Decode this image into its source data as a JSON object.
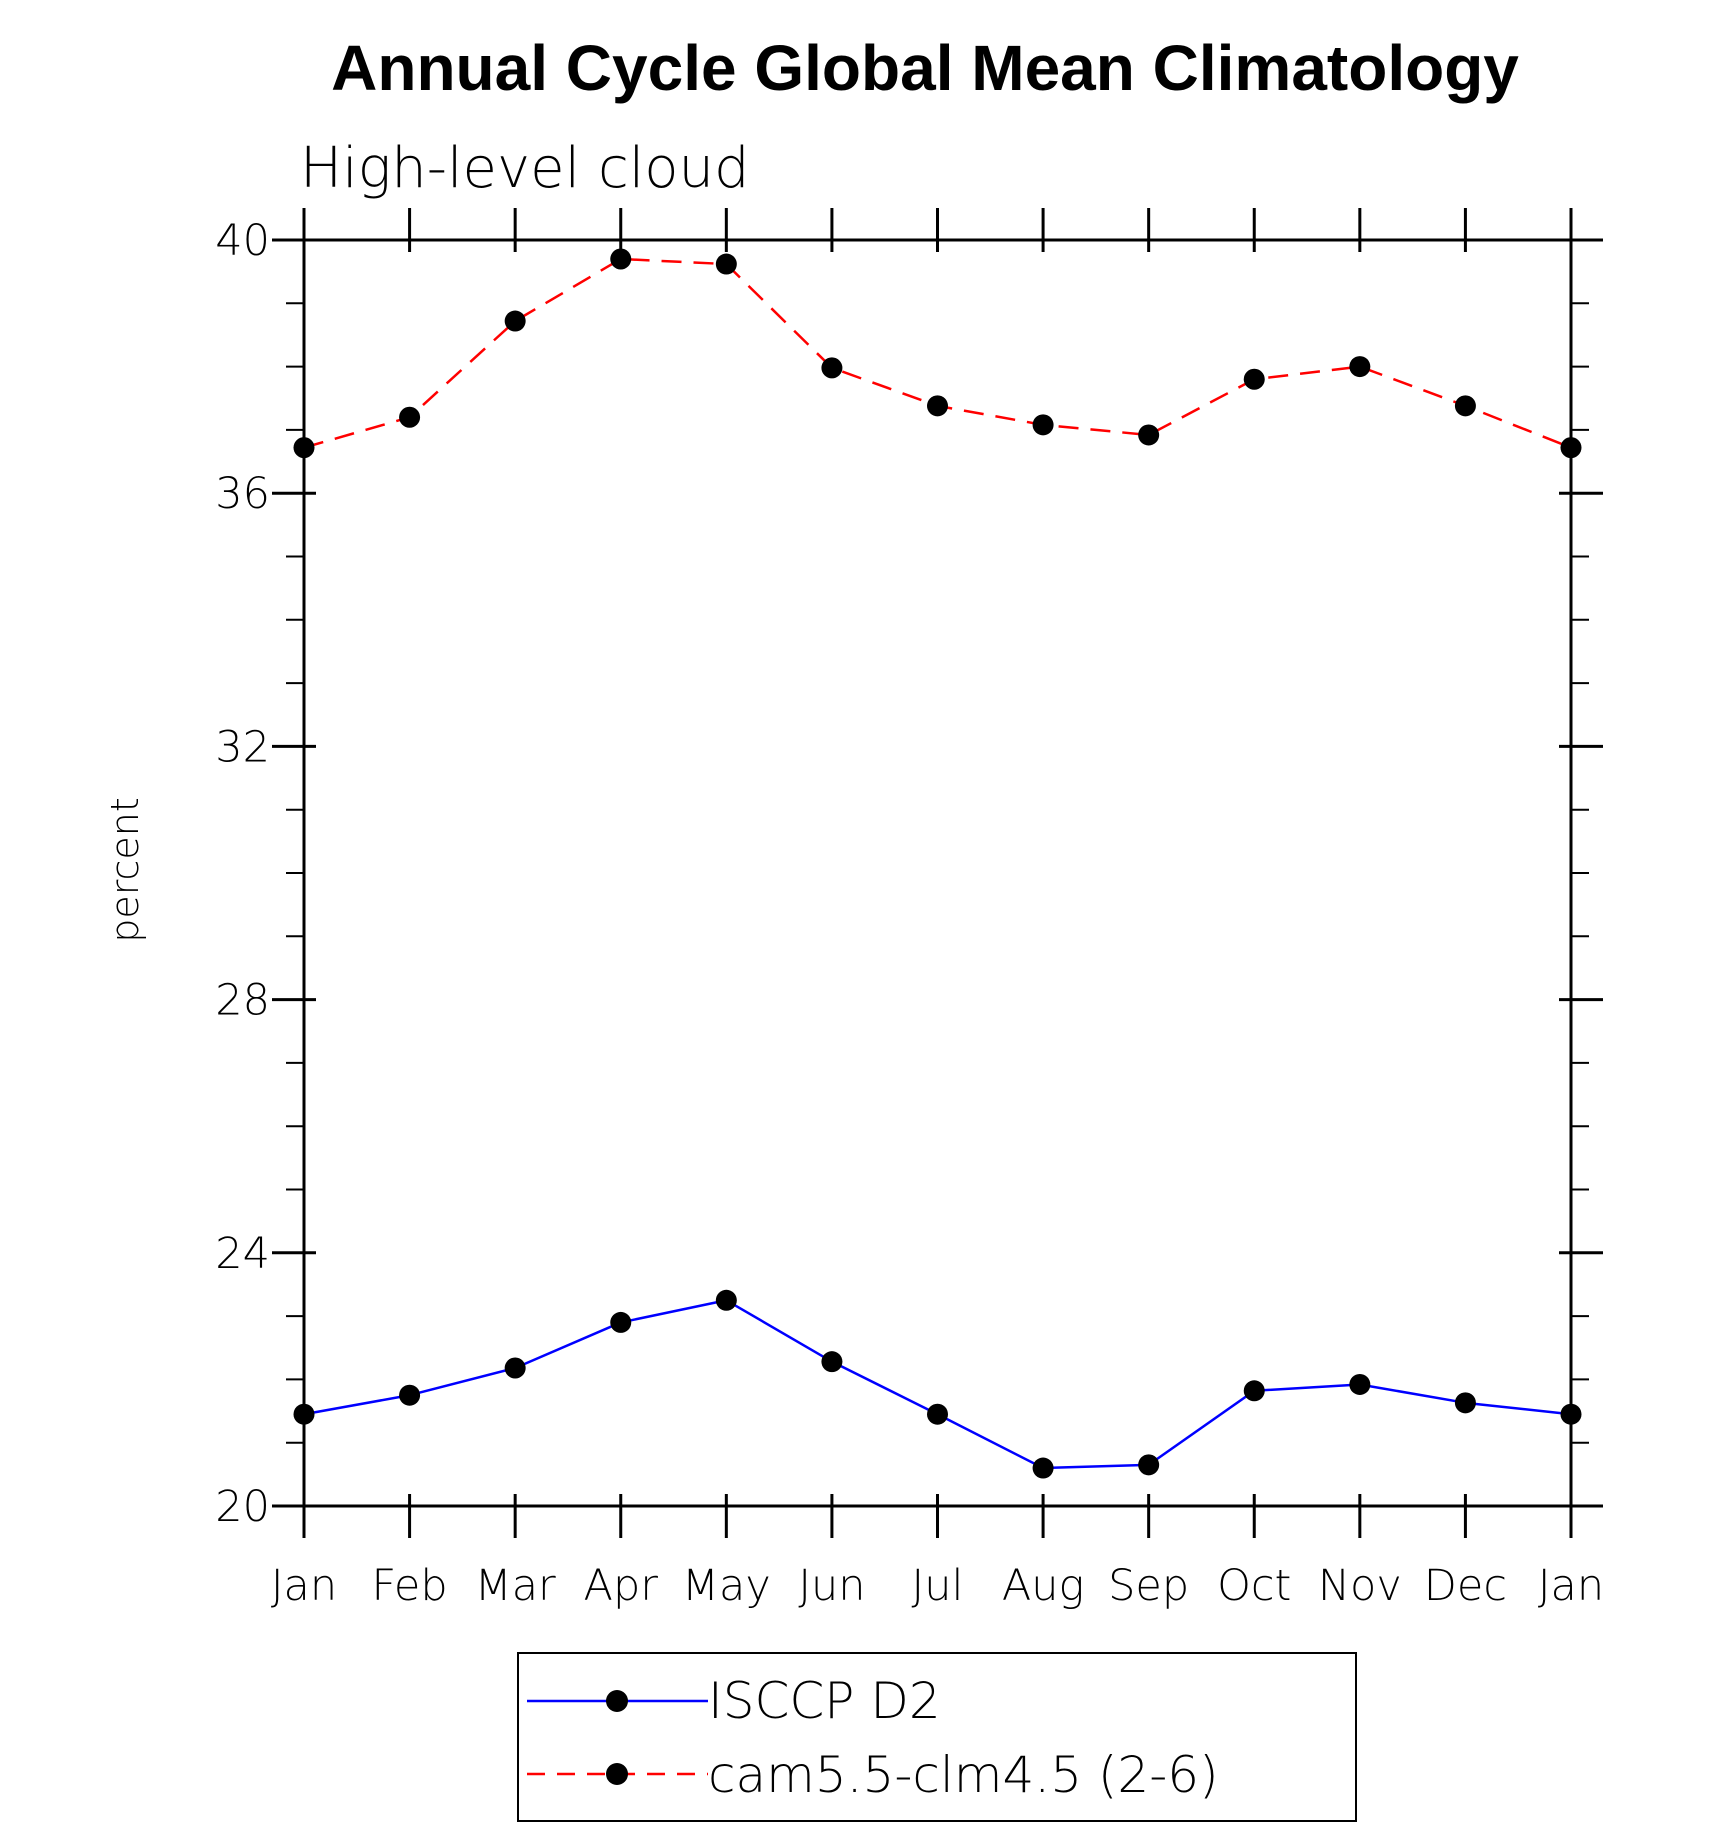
{
  "chart_data": {
    "type": "line",
    "title": "Annual Cycle Global Mean Climatology",
    "subtitle": "High-level cloud",
    "xlabel": "",
    "ylabel": "percent",
    "ylim": [
      20,
      40
    ],
    "yticks": [
      "20",
      "24",
      "28",
      "32",
      "36",
      "40"
    ],
    "categories": [
      "Jan",
      "Feb",
      "Mar",
      "Apr",
      "May",
      "Jun",
      "Jul",
      "Aug",
      "Sep",
      "Oct",
      "Nov",
      "Dec",
      "Jan"
    ],
    "series": [
      {
        "name": "ISCCP D2",
        "color": "#0000ff",
        "style": "solid",
        "values": [
          21.45,
          21.75,
          22.18,
          22.9,
          23.25,
          22.28,
          21.45,
          20.6,
          20.65,
          21.82,
          21.92,
          21.63,
          21.45
        ]
      },
      {
        "name": "cam5.5-clm4.5 (2-6)",
        "color": "#ff0000",
        "style": "dashed",
        "values": [
          36.72,
          37.2,
          38.72,
          39.7,
          39.62,
          37.98,
          37.38,
          37.08,
          36.92,
          37.8,
          38.0,
          37.38,
          36.72
        ]
      }
    ],
    "grid": false,
    "legend": "bottom-center"
  }
}
